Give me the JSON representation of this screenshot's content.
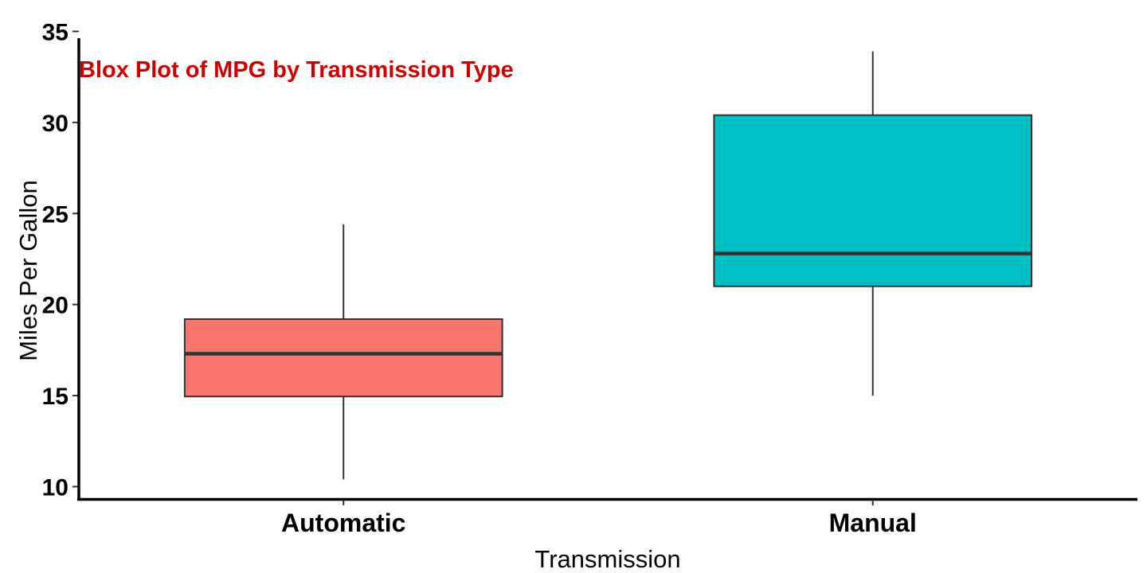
{
  "chart_data": {
    "type": "box",
    "title": "Blox Plot of MPG by Transmission Type",
    "title_color": "#cc0000",
    "xlabel": "Transmission",
    "ylabel": "Miles Per Gallon",
    "ylim": [
      9.3,
      35.5
    ],
    "yticks": [
      "10",
      "15",
      "20",
      "25",
      "30",
      "35"
    ],
    "grid": false,
    "categories": [
      "Automatic",
      "Manual"
    ],
    "boxes": [
      {
        "category": "Automatic",
        "whisker_low": 10.4,
        "q1": 14.95,
        "median": 17.3,
        "q3": 19.2,
        "whisker_high": 24.4,
        "fill": "#f8766d"
      },
      {
        "category": "Manual",
        "whisker_low": 15.0,
        "q1": 21.0,
        "median": 22.8,
        "q3": 30.4,
        "whisker_high": 33.9,
        "fill": "#00bfc4"
      }
    ]
  }
}
